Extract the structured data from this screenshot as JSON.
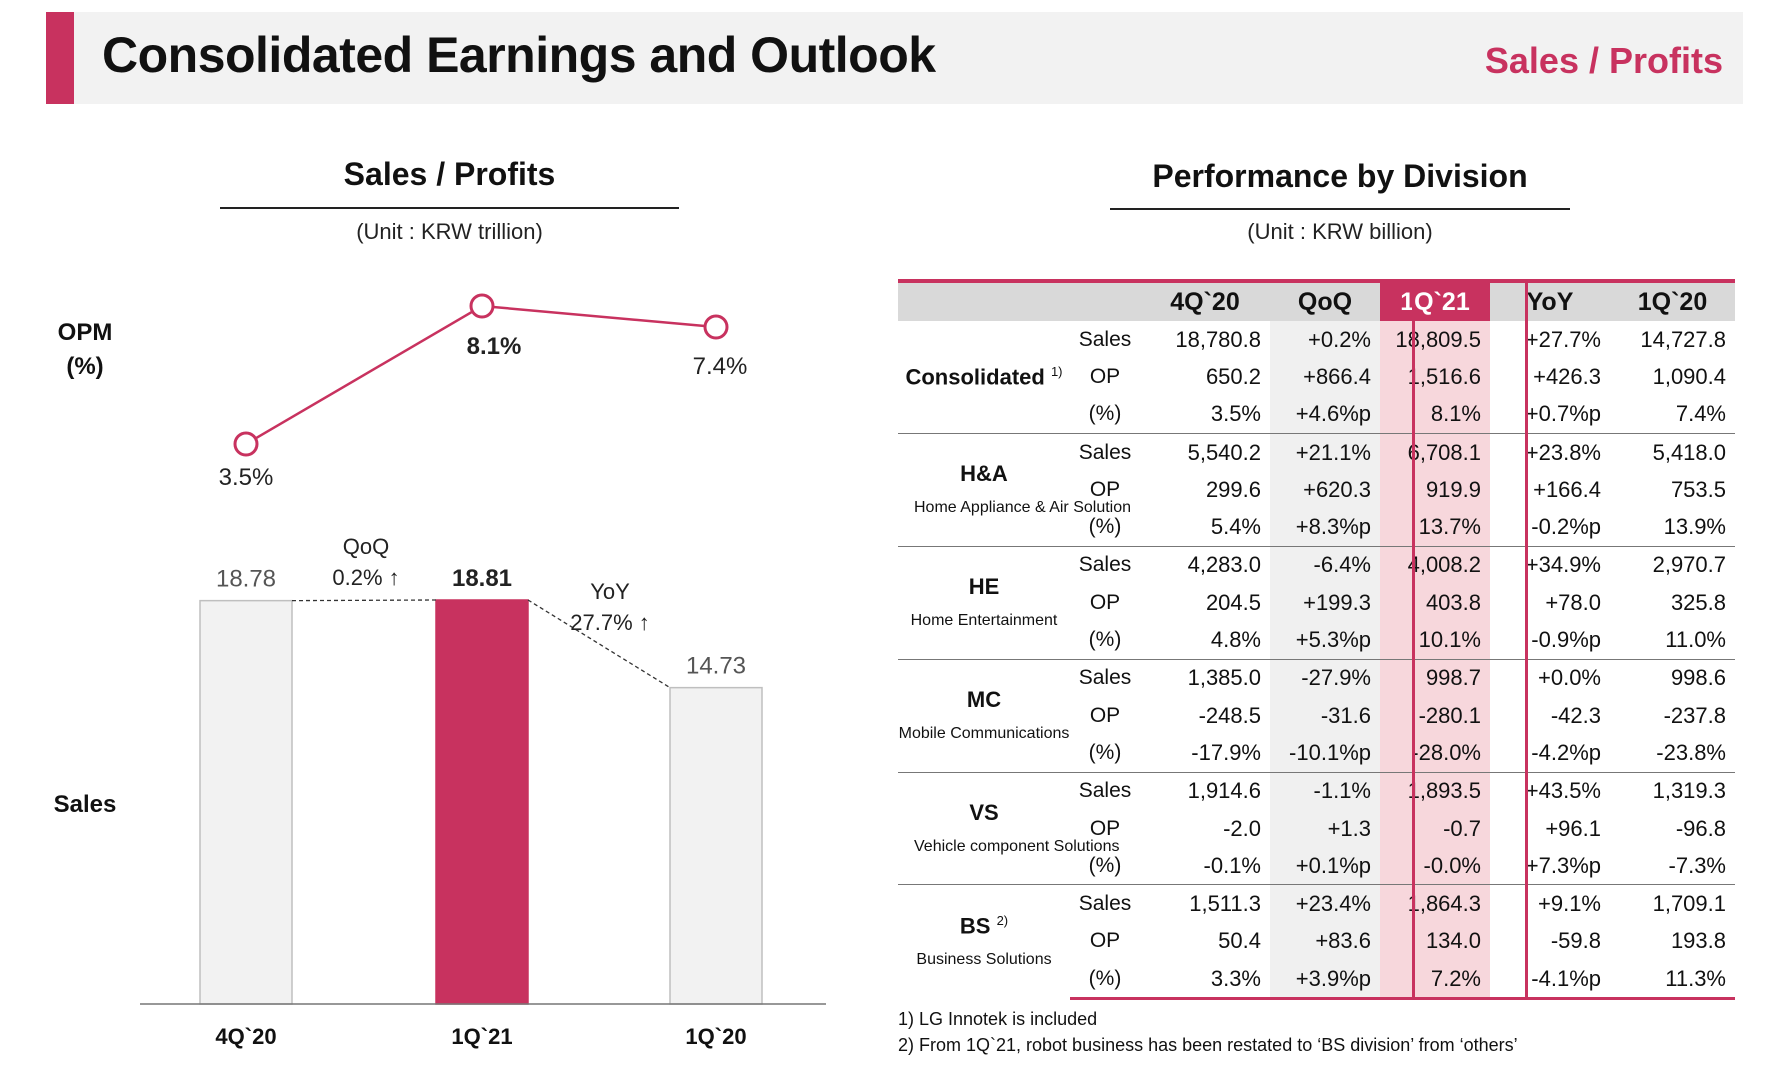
{
  "header": {
    "title": "Consolidated Earnings and Outlook",
    "right_label": "Sales / Profits"
  },
  "left": {
    "title": "Sales / Profits",
    "unit": "(Unit : KRW trillion)",
    "opm_label": "OPM",
    "opm_unit": "(%)",
    "sales_label": "Sales",
    "qoq_label": "QoQ",
    "qoq_value": "0.2% ↑",
    "yoy_label": "YoY",
    "yoy_value": "27.7% ↑"
  },
  "chart_data": [
    {
      "type": "line",
      "title": "OPM (%)",
      "categories": [
        "4Q`20",
        "1Q`21",
        "1Q`20"
      ],
      "values": [
        3.5,
        8.1,
        7.4
      ],
      "labels": [
        "3.5%",
        "8.1%",
        "7.4%"
      ],
      "color": "#c8325f"
    },
    {
      "type": "bar",
      "title": "Sales",
      "categories": [
        "4Q`20",
        "1Q`21",
        "1Q`20"
      ],
      "values": [
        18.78,
        18.81,
        14.73
      ],
      "labels": [
        "18.78",
        "18.81",
        "14.73"
      ],
      "highlight_index": 1,
      "bar_color": "#f2f2f2",
      "highlight_color": "#c8325f"
    }
  ],
  "right": {
    "title": "Performance by Division",
    "unit": "(Unit : KRW billion)",
    "columns": [
      "4Q`20",
      "QoQ",
      "1Q`21",
      "YoY",
      "1Q`20"
    ],
    "divisions": [
      {
        "name": "Consolidated",
        "note": "1)",
        "subtitle": "",
        "rows": [
          {
            "metric": "Sales",
            "values": [
              "18,780.8",
              "+0.2%",
              "18,809.5",
              "+27.7%",
              "14,727.8"
            ]
          },
          {
            "metric": "OP",
            "values": [
              "650.2",
              "+866.4",
              "1,516.6",
              "+426.3",
              "1,090.4"
            ]
          },
          {
            "metric": "(%)",
            "values": [
              "3.5%",
              "+4.6%p",
              "8.1%",
              "+0.7%p",
              "7.4%"
            ]
          }
        ]
      },
      {
        "name": "H&A",
        "note": "",
        "subtitle": "Home Appliance & Air Solution",
        "rows": [
          {
            "metric": "Sales",
            "values": [
              "5,540.2",
              "+21.1%",
              "6,708.1",
              "+23.8%",
              "5,418.0"
            ]
          },
          {
            "metric": "OP",
            "values": [
              "299.6",
              "+620.3",
              "919.9",
              "+166.4",
              "753.5"
            ]
          },
          {
            "metric": "(%)",
            "values": [
              "5.4%",
              "+8.3%p",
              "13.7%",
              "-0.2%p",
              "13.9%"
            ]
          }
        ]
      },
      {
        "name": "HE",
        "note": "",
        "subtitle": "Home Entertainment",
        "rows": [
          {
            "metric": "Sales",
            "values": [
              "4,283.0",
              "-6.4%",
              "4,008.2",
              "+34.9%",
              "2,970.7"
            ]
          },
          {
            "metric": "OP",
            "values": [
              "204.5",
              "+199.3",
              "403.8",
              "+78.0",
              "325.8"
            ]
          },
          {
            "metric": "(%)",
            "values": [
              "4.8%",
              "+5.3%p",
              "10.1%",
              "-0.9%p",
              "11.0%"
            ]
          }
        ]
      },
      {
        "name": "MC",
        "note": "",
        "subtitle": "Mobile Communications",
        "rows": [
          {
            "metric": "Sales",
            "values": [
              "1,385.0",
              "-27.9%",
              "998.7",
              "+0.0%",
              "998.6"
            ]
          },
          {
            "metric": "OP",
            "values": [
              "-248.5",
              "-31.6",
              "-280.1",
              "-42.3",
              "-237.8"
            ]
          },
          {
            "metric": "(%)",
            "values": [
              "-17.9%",
              "-10.1%p",
              "-28.0%",
              "-4.2%p",
              "-23.8%"
            ]
          }
        ]
      },
      {
        "name": "VS",
        "note": "",
        "subtitle": "Vehicle component Solutions",
        "rows": [
          {
            "metric": "Sales",
            "values": [
              "1,914.6",
              "-1.1%",
              "1,893.5",
              "+43.5%",
              "1,319.3"
            ]
          },
          {
            "metric": "OP",
            "values": [
              "-2.0",
              "+1.3",
              "-0.7",
              "+96.1",
              "-96.8"
            ]
          },
          {
            "metric": "(%)",
            "values": [
              "-0.1%",
              "+0.1%p",
              "-0.0%",
              "+7.3%p",
              "-7.3%"
            ]
          }
        ]
      },
      {
        "name": "BS",
        "note": "2)",
        "subtitle": "Business Solutions",
        "rows": [
          {
            "metric": "Sales",
            "values": [
              "1,511.3",
              "+23.4%",
              "1,864.3",
              "+9.1%",
              "1,709.1"
            ]
          },
          {
            "metric": "OP",
            "values": [
              "50.4",
              "+83.6",
              "134.0",
              "-59.8",
              "193.8"
            ]
          },
          {
            "metric": "(%)",
            "values": [
              "3.3%",
              "+3.9%p",
              "7.2%",
              "-4.1%p",
              "11.3%"
            ]
          }
        ]
      }
    ],
    "footnotes": [
      "1) LG Innotek is included",
      "2) From 1Q`21, robot business has been restated to ‘BS division’ from ‘others’"
    ]
  }
}
